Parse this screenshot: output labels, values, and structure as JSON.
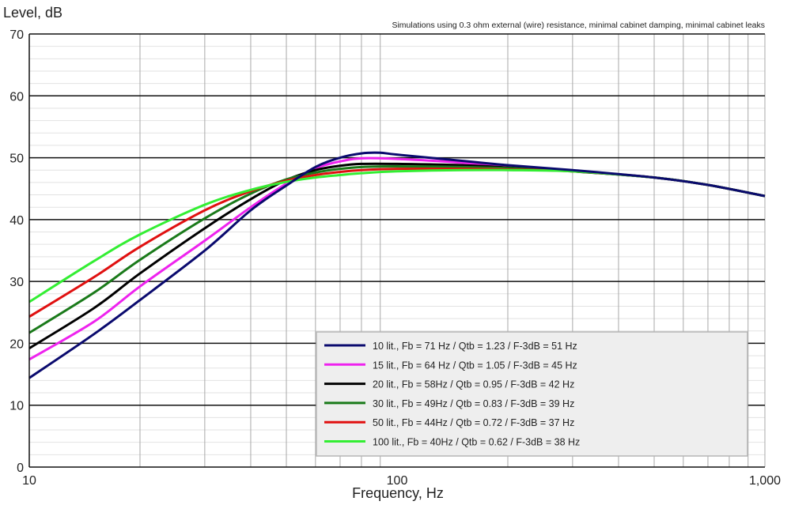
{
  "chart_data": {
    "type": "line",
    "title": "Level, dB",
    "annotation": "Simulations using 0.3 ohm external (wire) resistance, minimal cabinet damping, minimal cabinet leaks",
    "xlabel": "Frequency, Hz",
    "ylabel": "Level, dB",
    "x_scale": "log",
    "xlim": [
      10,
      1000
    ],
    "ylim": [
      0,
      70
    ],
    "x_ticks": [
      {
        "value": 10,
        "label": "10"
      },
      {
        "value": 100,
        "label": "100"
      },
      {
        "value": 1000,
        "label": "1,000"
      }
    ],
    "y_ticks": [
      0,
      10,
      20,
      30,
      40,
      50,
      60,
      70
    ],
    "grid": true,
    "legend_placement": "bottom-right",
    "series": [
      {
        "name": "10 lit., Fb = 71 Hz  /  Qtb =  1.23  /  F-3dB = 51 Hz",
        "color": "#0a0a6e",
        "x": [
          10,
          15,
          20,
          30,
          40,
          50,
          60,
          70,
          80,
          90,
          100,
          150,
          200,
          300,
          500,
          700,
          1000
        ],
        "y": [
          14.4,
          21.5,
          27,
          35,
          41.5,
          45.5,
          48.5,
          50,
          50.7,
          50.8,
          50.5,
          49.5,
          48.8,
          48,
          46.8,
          45.6,
          43.8
        ]
      },
      {
        "name": "15 lit., Fb = 64 Hz  /  Qtb =  1.05  /  F-3dB = 45 Hz",
        "color": "#ee22ee",
        "x": [
          10,
          15,
          20,
          30,
          40,
          50,
          60,
          70,
          80,
          100,
          150,
          200,
          300,
          500,
          700,
          1000
        ],
        "y": [
          17.4,
          23.5,
          29.2,
          36.6,
          42,
          45.8,
          48.3,
          49.4,
          49.9,
          49.8,
          49.2,
          48.6,
          47.9,
          46.8,
          45.6,
          43.8
        ]
      },
      {
        "name": "20 lit., Fb = 58Hz  /  Qtb =  0.95  /  F-3dB = 42 Hz",
        "color": "#000000",
        "x": [
          10,
          15,
          20,
          30,
          40,
          50,
          60,
          70,
          80,
          100,
          150,
          200,
          300,
          500,
          700,
          1000
        ],
        "y": [
          19.2,
          25.7,
          31.3,
          38.6,
          43.3,
          46.4,
          48,
          48.7,
          49,
          49,
          48.8,
          48.4,
          47.8,
          46.8,
          45.6,
          43.8
        ]
      },
      {
        "name": "30 lit., Fb = 49Hz  /  Qtb =  0.83  /  F-3dB = 39 Hz",
        "color": "#1a7a1a",
        "x": [
          10,
          15,
          20,
          30,
          40,
          50,
          60,
          70,
          80,
          100,
          150,
          200,
          300,
          500,
          700,
          1000
        ],
        "y": [
          21.7,
          28.2,
          33.5,
          40.2,
          44.2,
          46.5,
          47.6,
          48.2,
          48.5,
          48.6,
          48.5,
          48.3,
          47.8,
          46.8,
          45.6,
          43.8
        ]
      },
      {
        "name": "50 lit., Fb = 44Hz  /  Qtb =  0.72  /  F-3dB = 37 Hz",
        "color": "#e01010",
        "x": [
          10,
          15,
          20,
          30,
          40,
          50,
          60,
          70,
          80,
          100,
          150,
          200,
          300,
          500,
          700,
          1000
        ],
        "y": [
          24.3,
          30.7,
          35.6,
          41.5,
          44.6,
          46.3,
          47.2,
          47.7,
          48,
          48.2,
          48.2,
          48.1,
          47.8,
          46.8,
          45.6,
          43.8
        ]
      },
      {
        "name": "100 lit., Fb = 40Hz  /  Qtb =  0.62  /  F-3dB = 38 Hz",
        "color": "#33ee33",
        "x": [
          10,
          15,
          20,
          30,
          40,
          50,
          60,
          70,
          80,
          100,
          150,
          200,
          300,
          500,
          700,
          1000
        ],
        "y": [
          26.7,
          33.3,
          37.6,
          42.4,
          44.8,
          46.1,
          46.8,
          47.2,
          47.5,
          47.8,
          48,
          48,
          47.8,
          46.8,
          45.6,
          43.8
        ]
      }
    ]
  }
}
